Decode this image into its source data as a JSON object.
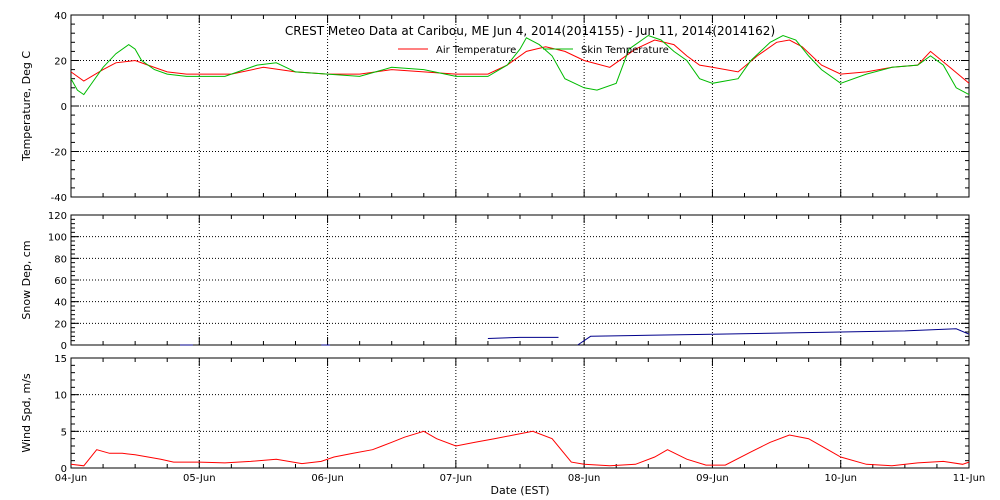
{
  "chart_data": {
    "type": "line",
    "title": "CREST Meteo Data at Caribou, ME   Jun  4, 2014(2014155) - Jun 11, 2014(2014162)",
    "xlabel": "Date (EST)",
    "x_ticks": [
      "04-Jun",
      "05-Jun",
      "06-Jun",
      "07-Jun",
      "08-Jun",
      "09-Jun",
      "10-Jun",
      "11-Jun"
    ],
    "xlim": [
      0,
      7
    ],
    "x_unit": "days after 04-Jun 00:00",
    "grid": true,
    "legend_position": "top-center",
    "panels": [
      {
        "ylabel": "Temperature, Deg C",
        "ylim": [
          -40,
          40
        ],
        "yticks": [
          -40,
          -20,
          0,
          20,
          40
        ],
        "series": [
          {
            "name": "Air Temperature",
            "color": "#ff0000",
            "x": [
              0,
              0.1,
              0.25,
              0.35,
              0.5,
              0.6,
              0.75,
              0.9,
              1.0,
              1.25,
              1.5,
              1.75,
              2.0,
              2.25,
              2.5,
              2.75,
              3.0,
              3.25,
              3.4,
              3.55,
              3.7,
              3.85,
              4.0,
              4.2,
              4.4,
              4.55,
              4.7,
              4.8,
              4.9,
              5.0,
              5.2,
              5.35,
              5.5,
              5.6,
              5.7,
              5.85,
              6.0,
              6.2,
              6.4,
              6.6,
              6.7,
              6.85,
              7.0
            ],
            "values": [
              15,
              11,
              16,
              19,
              20,
              18,
              15,
              14,
              14,
              14,
              17,
              15,
              14,
              14,
              16,
              15,
              14,
              14,
              18,
              24,
              26,
              24,
              20,
              17,
              25,
              29,
              27,
              22,
              18,
              17,
              15,
              22,
              28,
              29,
              26,
              18,
              14,
              15,
              17,
              18,
              24,
              17,
              10
            ]
          },
          {
            "name": "Skin Temperature",
            "color": "#00bb00",
            "x": [
              0,
              0.05,
              0.1,
              0.15,
              0.25,
              0.35,
              0.45,
              0.5,
              0.55,
              0.65,
              0.75,
              0.9,
              1.0,
              1.2,
              1.3,
              1.45,
              1.6,
              1.75,
              2.0,
              2.25,
              2.5,
              2.75,
              3.0,
              3.25,
              3.4,
              3.5,
              3.55,
              3.65,
              3.75,
              3.85,
              4.0,
              4.1,
              4.25,
              4.35,
              4.5,
              4.6,
              4.7,
              4.8,
              4.9,
              5.0,
              5.2,
              5.3,
              5.45,
              5.55,
              5.65,
              5.75,
              5.85,
              6.0,
              6.2,
              6.4,
              6.6,
              6.7,
              6.8,
              6.9,
              7.0
            ],
            "values": [
              12,
              7,
              5,
              9,
              17,
              23,
              27,
              25,
              20,
              16,
              14,
              13,
              13,
              13,
              15,
              18,
              19,
              15,
              14,
              13,
              17,
              16,
              13,
              13,
              18,
              25,
              30,
              27,
              22,
              12,
              8,
              7,
              10,
              25,
              31,
              29,
              24,
              20,
              12,
              10,
              12,
              20,
              28,
              31,
              29,
              22,
              16,
              10,
              14,
              17,
              18,
              22,
              18,
              8,
              5
            ]
          }
        ]
      },
      {
        "ylabel": "Snow Dep, cm",
        "ylim": [
          0,
          120
        ],
        "yticks": [
          0,
          20,
          40,
          60,
          80,
          100,
          120
        ],
        "series": [
          {
            "name": "",
            "color": "#00008b",
            "segments": [
              {
                "x": [
                  0.85,
                  0.95
                ],
                "values": [
                  0,
                  0
                ]
              },
              {
                "x": [
                  1.95,
                  2.02
                ],
                "values": [
                  0,
                  0
                ]
              },
              {
                "x": [
                  3.25,
                  3.5,
                  3.8
                ],
                "values": [
                  6,
                  7,
                  7
                ]
              },
              {
                "x": [
                  3.95,
                  4.05,
                  4.5,
                  5.0,
                  5.5,
                  6.0,
                  6.5,
                  6.9,
                  7.0
                ],
                "values": [
                  0,
                  8,
                  9,
                  10,
                  11,
                  12,
                  13,
                  15,
                  10
                ]
              }
            ]
          }
        ]
      },
      {
        "ylabel": "Wind Spd, m/s",
        "ylim": [
          0,
          15
        ],
        "yticks": [
          0,
          5,
          10,
          15
        ],
        "series": [
          {
            "name": "",
            "color": "#ff0000",
            "x": [
              0,
              0.1,
              0.2,
              0.3,
              0.4,
              0.5,
              0.6,
              0.7,
              0.8,
              1.0,
              1.2,
              1.4,
              1.6,
              1.8,
              1.95,
              2.05,
              2.2,
              2.35,
              2.5,
              2.6,
              2.75,
              2.85,
              3.0,
              3.15,
              3.3,
              3.45,
              3.6,
              3.75,
              3.9,
              4.0,
              4.2,
              4.4,
              4.55,
              4.65,
              4.8,
              4.95,
              5.1,
              5.3,
              5.45,
              5.6,
              5.75,
              5.9,
              6.0,
              6.2,
              6.4,
              6.6,
              6.8,
              6.95,
              7.0
            ],
            "values": [
              0.5,
              0.3,
              2.5,
              2.0,
              2.0,
              1.8,
              1.5,
              1.2,
              0.8,
              0.8,
              0.7,
              0.9,
              1.2,
              0.6,
              0.9,
              1.5,
              2.0,
              2.5,
              3.5,
              4.2,
              5.0,
              4.0,
              3.0,
              3.5,
              4.0,
              4.5,
              5.0,
              4.0,
              0.8,
              0.5,
              0.3,
              0.5,
              1.5,
              2.5,
              1.2,
              0.4,
              0.4,
              2.2,
              3.5,
              4.5,
              4.0,
              2.5,
              1.5,
              0.5,
              0.3,
              0.7,
              0.9,
              0.5,
              0.8
            ]
          }
        ]
      }
    ]
  }
}
